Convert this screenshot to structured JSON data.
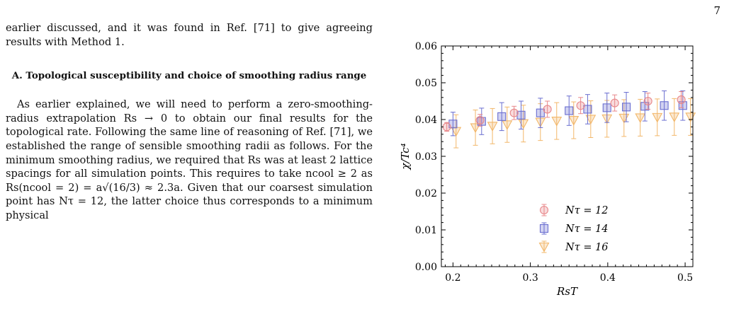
{
  "page": {
    "number": "7"
  },
  "text": {
    "paragraph_1": "earlier discussed, and it was found in Ref. [71] to give agreeing results with Method 1.",
    "section_heading": "A. Topological susceptibility and choice of smoothing radius range",
    "paragraph_2": "As earlier explained, we will need to perform a zero-smoothing-radius extrapolation Rs → 0 to obtain our final results for the topological rate. Following the same line of reasoning of Ref. [71], we established the range of sensible smoothing radii as follows. For the minimum smoothing radius, we required that Rs was at least 2 lattice spacings for all simulation points. This requires to take ncool ≥ 2 as Rs(ncool = 2) = a√(16/3) ≈ 2.3a. Given that our coarsest simulation point has Nτ = 12, the latter choice thus corresponds to a minimum physical"
  },
  "chart_data": {
    "type": "scatter",
    "xlabel": "RsT",
    "ylabel": "χ/Tc⁴",
    "xlim": [
      0.185,
      0.51
    ],
    "ylim": [
      0.0,
      0.06
    ],
    "xticks": [
      "0.2",
      "0.3",
      "0.4",
      "0.5"
    ],
    "yticks": [
      "0.00",
      "0.01",
      "0.02",
      "0.03",
      "0.04",
      "0.05",
      "0.06"
    ],
    "legend_position": "lower-center",
    "grid": false,
    "series": [
      {
        "name": "Nτ = 12",
        "marker": "circle",
        "color": "#e8878a",
        "x": [
          0.192,
          0.235,
          0.279,
          0.322,
          0.365,
          0.409,
          0.452,
          0.495
        ],
        "y": [
          0.038,
          0.0398,
          0.0418,
          0.0428,
          0.0438,
          0.0445,
          0.045,
          0.0454
        ],
        "err": [
          0.0012,
          0.0016,
          0.0018,
          0.0022,
          0.0022,
          0.0022,
          0.0022,
          0.0022
        ]
      },
      {
        "name": "Nτ = 14",
        "marker": "square",
        "color": "#6a6ed0",
        "x": [
          0.2,
          0.237,
          0.263,
          0.288,
          0.313,
          0.35,
          0.374,
          0.399,
          0.424,
          0.448,
          0.473,
          0.497
        ],
        "y": [
          0.0388,
          0.0395,
          0.0408,
          0.0412,
          0.0418,
          0.0424,
          0.0428,
          0.0432,
          0.0434,
          0.0436,
          0.0438,
          0.0438
        ],
        "err": [
          0.0032,
          0.0036,
          0.0038,
          0.0038,
          0.004,
          0.004,
          0.004,
          0.004,
          0.004,
          0.004,
          0.004,
          0.004
        ]
      },
      {
        "name": "Nτ = 16",
        "marker": "triangle-down",
        "color": "#f2b76a",
        "x": [
          0.204,
          0.229,
          0.251,
          0.27,
          0.291,
          0.313,
          0.334,
          0.356,
          0.378,
          0.399,
          0.421,
          0.442,
          0.464,
          0.486,
          0.507
        ],
        "y": [
          0.0368,
          0.0378,
          0.0382,
          0.0386,
          0.0389,
          0.0393,
          0.0396,
          0.0398,
          0.0401,
          0.0402,
          0.0404,
          0.0405,
          0.0406,
          0.0407,
          0.0407
        ],
        "err": [
          0.0045,
          0.0048,
          0.0048,
          0.0048,
          0.005,
          0.005,
          0.005,
          0.005,
          0.005,
          0.005,
          0.005,
          0.005,
          0.005,
          0.005,
          0.005
        ]
      }
    ]
  }
}
